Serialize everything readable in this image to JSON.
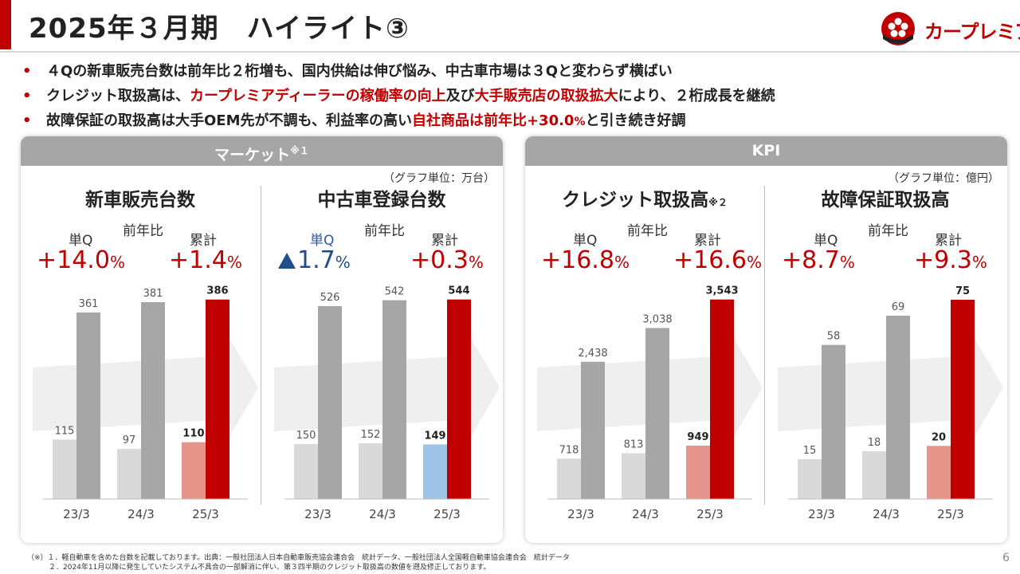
{
  "header": {
    "title": "2025年３月期　ハイライト③",
    "logo_text": "カープレミア"
  },
  "bullets": [
    {
      "parts": [
        {
          "text": "４Qの新車販売台数は前年比２桁増も、国内供給は伸び悩み、中古車市場は３Qと変わらず横ばい",
          "style": ""
        }
      ]
    },
    {
      "parts": [
        {
          "text": "クレジット取扱高は、",
          "style": ""
        },
        {
          "text": "カープレミアディーラーの稼働率の向上",
          "style": "red"
        },
        {
          "text": "及び",
          "style": ""
        },
        {
          "text": "大手販売店の取扱拡大",
          "style": "red"
        },
        {
          "text": "により、２桁成長を継続",
          "style": ""
        }
      ]
    },
    {
      "parts": [
        {
          "text": "故障保証の取扱高は大手OEM先が不調も、利益率の高い",
          "style": ""
        },
        {
          "text": "自社商品は前年比+30.0",
          "style": "red"
        },
        {
          "text": "%",
          "style": "red small"
        },
        {
          "text": "と引き続き好調",
          "style": ""
        }
      ]
    }
  ],
  "panels": {
    "market": {
      "title": "マーケット",
      "title_note": "※１",
      "unit_note": "（グラフ単位：万台）"
    },
    "kpi": {
      "title": "KPI",
      "unit_note": "（グラフ単位：億円）"
    }
  },
  "labels": {
    "quarter": "単Q",
    "yoy": "前年比",
    "cumulative": "累計"
  },
  "chart_data": [
    {
      "type": "bar",
      "title": "新車販売台数",
      "title_note": "",
      "categories": [
        "23/3",
        "24/3",
        "25/3"
      ],
      "series": [
        {
          "name": "単Q",
          "values": [
            115,
            97,
            110
          ],
          "labels": [
            "115",
            "97",
            "110"
          ]
        },
        {
          "name": "累計",
          "values": [
            361,
            381,
            386
          ],
          "labels": [
            "361",
            "381",
            "386"
          ]
        }
      ],
      "yoy_quarter": {
        "sign": "+",
        "value": "14.0",
        "negative": false
      },
      "yoy_cumulative": {
        "sign": "+",
        "value": "1.4"
      },
      "ymax": 401,
      "colors": {
        "q": "#d9d9d9",
        "c": "#a6a6a6",
        "q_last": "#e6958a",
        "c_last": "#c00000"
      }
    },
    {
      "type": "bar",
      "title": "中古車登録台数",
      "title_note": "",
      "categories": [
        "23/3",
        "24/3",
        "25/3"
      ],
      "series": [
        {
          "name": "単Q",
          "values": [
            150,
            152,
            149
          ],
          "labels": [
            "150",
            "152",
            "149"
          ]
        },
        {
          "name": "累計",
          "values": [
            526,
            542,
            544
          ],
          "labels": [
            "526",
            "542",
            "544"
          ]
        }
      ],
      "yoy_quarter": {
        "sign": "",
        "value": "1.7",
        "negative": true
      },
      "yoy_cumulative": {
        "sign": "+",
        "value": "0.3"
      },
      "ymax": 565,
      "colors": {
        "q": "#d9d9d9",
        "c": "#a6a6a6",
        "q_last": "#9dc3e6",
        "c_last": "#c00000"
      }
    },
    {
      "type": "bar",
      "title": "クレジット取扱高",
      "title_note": "※２",
      "categories": [
        "23/3",
        "24/3",
        "25/3"
      ],
      "series": [
        {
          "name": "単Q",
          "values": [
            718,
            813,
            949
          ],
          "labels": [
            "718",
            "813",
            "949"
          ]
        },
        {
          "name": "累計",
          "values": [
            2438,
            3038,
            3543
          ],
          "labels": [
            "2,438",
            "3,038",
            "3,543"
          ]
        }
      ],
      "yoy_quarter": {
        "sign": "+",
        "value": "16.8",
        "negative": false
      },
      "yoy_cumulative": {
        "sign": "+",
        "value": "16.6"
      },
      "ymax": 3680,
      "colors": {
        "q": "#d9d9d9",
        "c": "#a6a6a6",
        "q_last": "#e6958a",
        "c_last": "#c00000"
      }
    },
    {
      "type": "bar",
      "title": "故障保証取扱高",
      "title_note": "",
      "categories": [
        "23/3",
        "24/3",
        "25/3"
      ],
      "series": [
        {
          "name": "単Q",
          "values": [
            15,
            18,
            20
          ],
          "labels": [
            "15",
            "18",
            "20"
          ]
        },
        {
          "name": "累計",
          "values": [
            58,
            69,
            75
          ],
          "labels": [
            "58",
            "69",
            "75"
          ]
        }
      ],
      "yoy_quarter": {
        "sign": "+",
        "value": "8.7",
        "negative": false
      },
      "yoy_cumulative": {
        "sign": "+",
        "value": "9.3"
      },
      "ymax": 78,
      "colors": {
        "q": "#d9d9d9",
        "c": "#a6a6a6",
        "q_last": "#e6958a",
        "c_last": "#c00000"
      }
    }
  ],
  "footnotes": [
    "（※）１．軽自動車を含めた台数を記載しております。出典：一般社団法人日本自動車販売協会連合会　統計データ、一般社団法人全国軽自動車協会連合会　統計データ",
    "　　　２．2024年11月以降に発生していたシステム不具合の一部解消に伴い、第３四半期のクレジット取扱高の数値を遡及修正しております。"
  ],
  "page_number": "6"
}
